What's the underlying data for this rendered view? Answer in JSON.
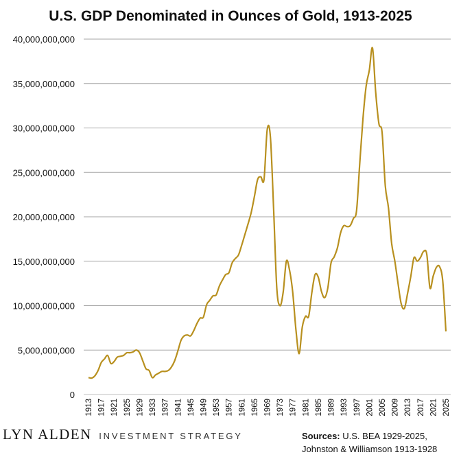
{
  "chart_data": {
    "type": "line",
    "title": "U.S. GDP Denominated in Ounces of Gold, 1913-2025",
    "xlabel": "",
    "ylabel": "",
    "ylim": [
      0,
      40000000000
    ],
    "y_ticks": [
      "0",
      "5,000,000,000",
      "10,000,000,000",
      "15,000,000,000",
      "20,000,000,000",
      "25,000,000,000",
      "30,000,000,000",
      "35,000,000,000",
      "40,000,000,000"
    ],
    "x_ticks": [
      "1913",
      "1917",
      "1921",
      "1925",
      "1929",
      "1933",
      "1937",
      "1941",
      "1945",
      "1949",
      "1953",
      "1957",
      "1961",
      "1965",
      "1969",
      "1973",
      "1977",
      "1981",
      "1985",
      "1989",
      "1993",
      "1997",
      "2001",
      "2005",
      "2009",
      "2013",
      "2017",
      "2021",
      "2025"
    ],
    "grid": true,
    "line_color": "#B8901F",
    "x": [
      1913,
      1914,
      1915,
      1916,
      1917,
      1918,
      1919,
      1920,
      1921,
      1922,
      1923,
      1924,
      1925,
      1926,
      1927,
      1928,
      1929,
      1930,
      1931,
      1932,
      1933,
      1934,
      1935,
      1936,
      1937,
      1938,
      1939,
      1940,
      1941,
      1942,
      1943,
      1944,
      1945,
      1946,
      1947,
      1948,
      1949,
      1950,
      1951,
      1952,
      1953,
      1954,
      1955,
      1956,
      1957,
      1958,
      1959,
      1960,
      1961,
      1962,
      1963,
      1964,
      1965,
      1966,
      1967,
      1968,
      1969,
      1970,
      1971,
      1972,
      1973,
      1974,
      1975,
      1976,
      1977,
      1978,
      1979,
      1980,
      1981,
      1982,
      1983,
      1984,
      1985,
      1986,
      1987,
      1988,
      1989,
      1990,
      1991,
      1992,
      1993,
      1994,
      1995,
      1996,
      1997,
      1998,
      1999,
      2000,
      2001,
      2002,
      2003,
      2004,
      2005,
      2006,
      2007,
      2008,
      2009,
      2010,
      2011,
      2012,
      2013,
      2014,
      2015,
      2016,
      2017,
      2018,
      2019,
      2020,
      2021,
      2022,
      2023,
      2024,
      2025
    ],
    "series": [
      {
        "values": [
          1900000000,
          1850000000,
          2100000000,
          2700000000,
          3600000000,
          4000000000,
          4400000000,
          3500000000,
          3700000000,
          4200000000,
          4300000000,
          4400000000,
          4700000000,
          4700000000,
          4800000000,
          5000000000,
          4700000000,
          3800000000,
          2900000000,
          2700000000,
          1900000000,
          2200000000,
          2400000000,
          2600000000,
          2600000000,
          2700000000,
          3100000000,
          3800000000,
          4900000000,
          6100000000,
          6600000000,
          6700000000,
          6600000000,
          7200000000,
          8000000000,
          8600000000,
          8700000000,
          10100000000,
          10600000000,
          11100000000,
          11200000000,
          12200000000,
          12900000000,
          13500000000,
          13700000000,
          14800000000,
          15300000000,
          15700000000,
          16800000000,
          18000000000,
          19200000000,
          20500000000,
          22300000000,
          24200000000,
          24500000000,
          24200000000,
          29800000000,
          29000000000,
          21000000000,
          12000000000,
          10000000000,
          11500000000,
          15000000000,
          14000000000,
          11500000000,
          7300000000,
          4600000000,
          7600000000,
          8800000000,
          8800000000,
          11500000000,
          13500000000,
          13200000000,
          11600000000,
          10900000000,
          12000000000,
          14800000000,
          15500000000,
          16500000000,
          18200000000,
          19000000000,
          18900000000,
          19000000000,
          19800000000,
          20700000000,
          26000000000,
          31000000000,
          34700000000,
          36500000000,
          39000000000,
          34000000000,
          30500000000,
          29500000000,
          23500000000,
          21000000000,
          17000000000,
          15000000000,
          12500000000,
          10200000000,
          9700000000,
          11400000000,
          13300000000,
          15400000000,
          15000000000,
          15400000000,
          16100000000,
          15800000000,
          12000000000,
          13300000000,
          14300000000,
          14400000000,
          12800000000,
          7100000000
        ]
      }
    ]
  },
  "footer": {
    "brand_name": "LYN ALDEN",
    "brand_sub": "INVESTMENT STRATEGY",
    "sources_label": "Sources:",
    "sources_line1": "U.S. BEA 1929-2025,",
    "sources_line2": "Johnston & Williamson 1913-1928"
  }
}
